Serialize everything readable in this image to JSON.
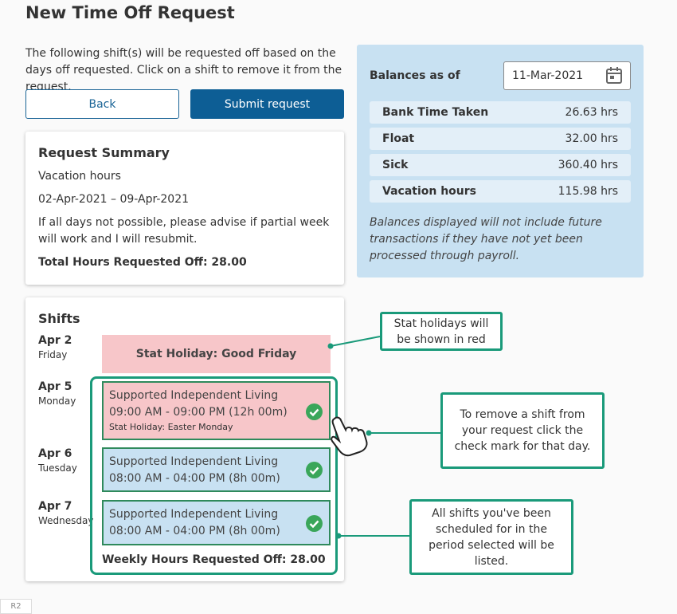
{
  "header": {
    "title": "New Time Off Request"
  },
  "intro": "The following shift(s) will be requested off based on the days off requested. Click on a shift to remove it from the request.",
  "buttons": {
    "back": "Back",
    "submit": "Submit request"
  },
  "summary": {
    "title": "Request Summary",
    "type": "Vacation hours",
    "dates": "02-Apr-2021 – 09-Apr-2021",
    "note": "If all days not possible, please advise if partial week will work and I will resubmit.",
    "total": "Total Hours Requested Off: 28.00"
  },
  "balances": {
    "label": "Balances as of",
    "date": "11-Mar-2021",
    "rows": [
      {
        "label": "Bank Time Taken",
        "value": "26.63 hrs"
      },
      {
        "label": "Float",
        "value": "32.00 hrs"
      },
      {
        "label": "Sick",
        "value": "360.40 hrs"
      },
      {
        "label": "Vacation hours",
        "value": "115.98 hrs"
      }
    ],
    "footnote": "Balances displayed will not include future transactions if they have not yet been processed through payroll."
  },
  "shifts": {
    "title": "Shifts",
    "days": [
      {
        "date": "Apr 2",
        "weekday": "Friday"
      },
      {
        "date": "Apr 5",
        "weekday": "Monday"
      },
      {
        "date": "Apr 6",
        "weekday": "Tuesday"
      },
      {
        "date": "Apr 7",
        "weekday": "Wednesday"
      }
    ],
    "stat": "Stat Holiday: Good Friday",
    "items": [
      {
        "name": "Supported Independent Living",
        "time": "09:00 AM - 09:00 PM (12h 00m)",
        "note": "Stat Holiday: Easter Monday"
      },
      {
        "name": "Supported Independent Living",
        "time": "08:00 AM - 04:00 PM (8h 00m)"
      },
      {
        "name": "Supported Independent Living",
        "time": "08:00 AM - 04:00 PM (8h 00m)"
      }
    ],
    "weekly_total": "Weekly Hours Requested Off: 28.00"
  },
  "callouts": [
    "Stat holidays will be shown in red",
    "To remove a shift from your request click the check mark for that day.",
    "All shifts you've been scheduled for in the period selected will be listed."
  ],
  "footer": "R2"
}
